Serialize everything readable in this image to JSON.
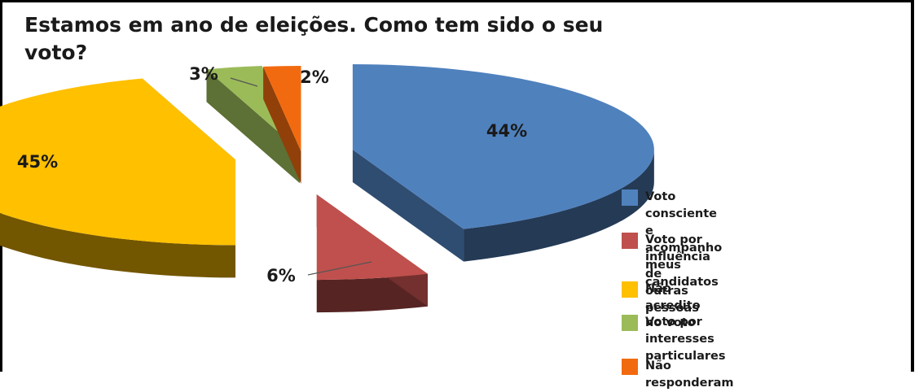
{
  "chart_data": {
    "type": "pie",
    "title": "Estamos em ano de eleições. Como tem sido o seu voto?",
    "categories": [
      "Voto consciente e\nacompanho meus candidatos",
      "Voto por influência de\noutras pessoas",
      "Não acredito no voto",
      "Voto por interesses\nparticulares",
      "Não responderam"
    ],
    "values": [
      44,
      6,
      45,
      3,
      2
    ],
    "data_labels": [
      "44%",
      "6%",
      "45%",
      "3%",
      "2%"
    ],
    "colors": [
      "#4f81bd",
      "#c0504d",
      "#ffc000",
      "#9bbb59",
      "#f26a0f"
    ],
    "legend_position": "right",
    "style": "3d-exploded"
  }
}
